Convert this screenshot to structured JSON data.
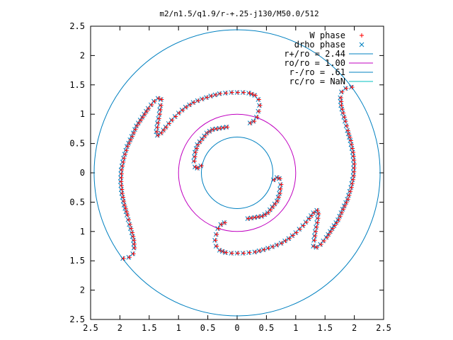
{
  "chart_data": {
    "type": "scatter",
    "title": "m2/n1.5/q1.9/r-+.25-j130/M50.0/512",
    "xlabel": "",
    "ylabel": "",
    "xlim": [
      -2.5,
      2.5
    ],
    "ylim": [
      -2.5,
      2.5
    ],
    "x_tick_labels": [
      "2.5",
      "2",
      "1.5",
      "1",
      "0.5",
      "0",
      "0.5",
      "1",
      "1.5",
      "2",
      "2.5"
    ],
    "y_tick_labels": [
      "2.5",
      "2",
      "1.5",
      "1",
      "0.5",
      "0",
      "0.5",
      "1",
      "1.5",
      "2",
      "2.5"
    ],
    "grid": false,
    "legend_position": "top-right",
    "series": [
      {
        "name": "W phase",
        "marker": "plus",
        "color": "#ff0000"
      },
      {
        "name": "drho phase",
        "marker": "cross",
        "color": "#0080c0"
      }
    ],
    "circles": [
      {
        "name": "r+/ro = 2.44",
        "radius": 2.44,
        "color": "#0080c0"
      },
      {
        "name": "ro/ro = 1.00",
        "radius": 1.0,
        "color": "#c000c0"
      },
      {
        "name": "r-/ro = .61",
        "radius": 0.61,
        "color": "#0080c0"
      },
      {
        "name": "rc/ro = NaN",
        "radius": null,
        "color": "#00c0c0"
      }
    ],
    "spiral_arms": [
      [
        [
          0.22,
          0.85
        ],
        [
          0.28,
          0.88
        ],
        [
          0.33,
          0.95
        ],
        [
          0.36,
          1.05
        ],
        [
          0.38,
          1.15
        ],
        [
          0.36,
          1.25
        ],
        [
          0.3,
          1.32
        ],
        [
          0.2,
          1.36
        ],
        [
          0.1,
          1.37
        ],
        [
          0.0,
          1.37
        ],
        [
          -0.1,
          1.37
        ],
        [
          -0.2,
          1.36
        ],
        [
          -0.3,
          1.35
        ],
        [
          -0.45,
          1.31
        ],
        [
          -0.6,
          1.26
        ],
        [
          -0.75,
          1.2
        ],
        [
          -0.88,
          1.12
        ],
        [
          -1.0,
          1.02
        ],
        [
          -1.12,
          0.9
        ],
        [
          -1.22,
          0.78
        ],
        [
          -1.3,
          0.68
        ],
        [
          -1.36,
          0.64
        ],
        [
          -1.38,
          0.7
        ],
        [
          -1.36,
          0.85
        ],
        [
          -1.33,
          1.0
        ],
        [
          -1.31,
          1.15
        ],
        [
          -1.3,
          1.25
        ],
        [
          -1.35,
          1.27
        ],
        [
          -1.42,
          1.22
        ],
        [
          -1.52,
          1.1
        ],
        [
          -1.62,
          0.95
        ],
        [
          -1.72,
          0.8
        ],
        [
          -1.8,
          0.62
        ],
        [
          -1.88,
          0.45
        ],
        [
          -1.94,
          0.25
        ],
        [
          -1.98,
          0.05
        ],
        [
          -1.99,
          -0.15
        ],
        [
          -1.97,
          -0.35
        ],
        [
          -1.93,
          -0.55
        ],
        [
          -1.88,
          -0.72
        ],
        [
          -1.84,
          -0.88
        ],
        [
          -1.8,
          -1.02
        ],
        [
          -1.77,
          -1.15
        ],
        [
          -1.76,
          -1.28
        ],
        [
          -1.78,
          -1.38
        ],
        [
          -1.85,
          -1.44
        ],
        [
          -1.95,
          -1.46
        ],
        [
          -2.0,
          -1.45
        ]
      ],
      [
        [
          -0.22,
          -0.85
        ],
        [
          -0.28,
          -0.88
        ],
        [
          -0.33,
          -0.95
        ],
        [
          -0.36,
          -1.05
        ],
        [
          -0.38,
          -1.15
        ],
        [
          -0.36,
          -1.25
        ],
        [
          -0.3,
          -1.32
        ],
        [
          -0.2,
          -1.36
        ],
        [
          -0.1,
          -1.37
        ],
        [
          0.0,
          -1.37
        ],
        [
          0.1,
          -1.37
        ],
        [
          0.2,
          -1.36
        ],
        [
          0.3,
          -1.35
        ],
        [
          0.45,
          -1.31
        ],
        [
          0.6,
          -1.26
        ],
        [
          0.75,
          -1.2
        ],
        [
          0.88,
          -1.12
        ],
        [
          1.0,
          -1.02
        ],
        [
          1.12,
          -0.9
        ],
        [
          1.22,
          -0.78
        ],
        [
          1.3,
          -0.68
        ],
        [
          1.36,
          -0.64
        ],
        [
          1.38,
          -0.7
        ],
        [
          1.36,
          -0.85
        ],
        [
          1.33,
          -1.0
        ],
        [
          1.31,
          -1.15
        ],
        [
          1.3,
          -1.25
        ],
        [
          1.35,
          -1.27
        ],
        [
          1.42,
          -1.22
        ],
        [
          1.52,
          -1.1
        ],
        [
          1.62,
          -0.95
        ],
        [
          1.72,
          -0.8
        ],
        [
          1.8,
          -0.62
        ],
        [
          1.88,
          -0.45
        ],
        [
          1.94,
          -0.25
        ],
        [
          1.98,
          -0.05
        ],
        [
          1.99,
          0.15
        ],
        [
          1.97,
          0.35
        ],
        [
          1.93,
          0.55
        ],
        [
          1.88,
          0.72
        ],
        [
          1.84,
          0.88
        ],
        [
          1.8,
          1.02
        ],
        [
          1.77,
          1.15
        ],
        [
          1.76,
          1.28
        ],
        [
          1.78,
          1.38
        ],
        [
          1.85,
          1.44
        ],
        [
          1.95,
          1.46
        ],
        [
          2.0,
          1.45
        ]
      ],
      [
        [
          -0.62,
          0.12
        ],
        [
          -0.68,
          0.08
        ],
        [
          -0.72,
          0.1
        ],
        [
          -0.74,
          0.2
        ],
        [
          -0.72,
          0.35
        ],
        [
          -0.68,
          0.48
        ],
        [
          -0.6,
          0.58
        ],
        [
          -0.52,
          0.68
        ],
        [
          -0.42,
          0.74
        ],
        [
          -0.3,
          0.76
        ],
        [
          -0.18,
          0.78
        ],
        [
          -0.08,
          0.8
        ]
      ],
      [
        [
          0.62,
          -0.12
        ],
        [
          0.68,
          -0.08
        ],
        [
          0.72,
          -0.1
        ],
        [
          0.74,
          -0.2
        ],
        [
          0.72,
          -0.35
        ],
        [
          0.68,
          -0.48
        ],
        [
          0.6,
          -0.58
        ],
        [
          0.52,
          -0.68
        ],
        [
          0.42,
          -0.74
        ],
        [
          0.3,
          -0.76
        ],
        [
          0.18,
          -0.78
        ],
        [
          0.08,
          -0.8
        ]
      ]
    ]
  }
}
